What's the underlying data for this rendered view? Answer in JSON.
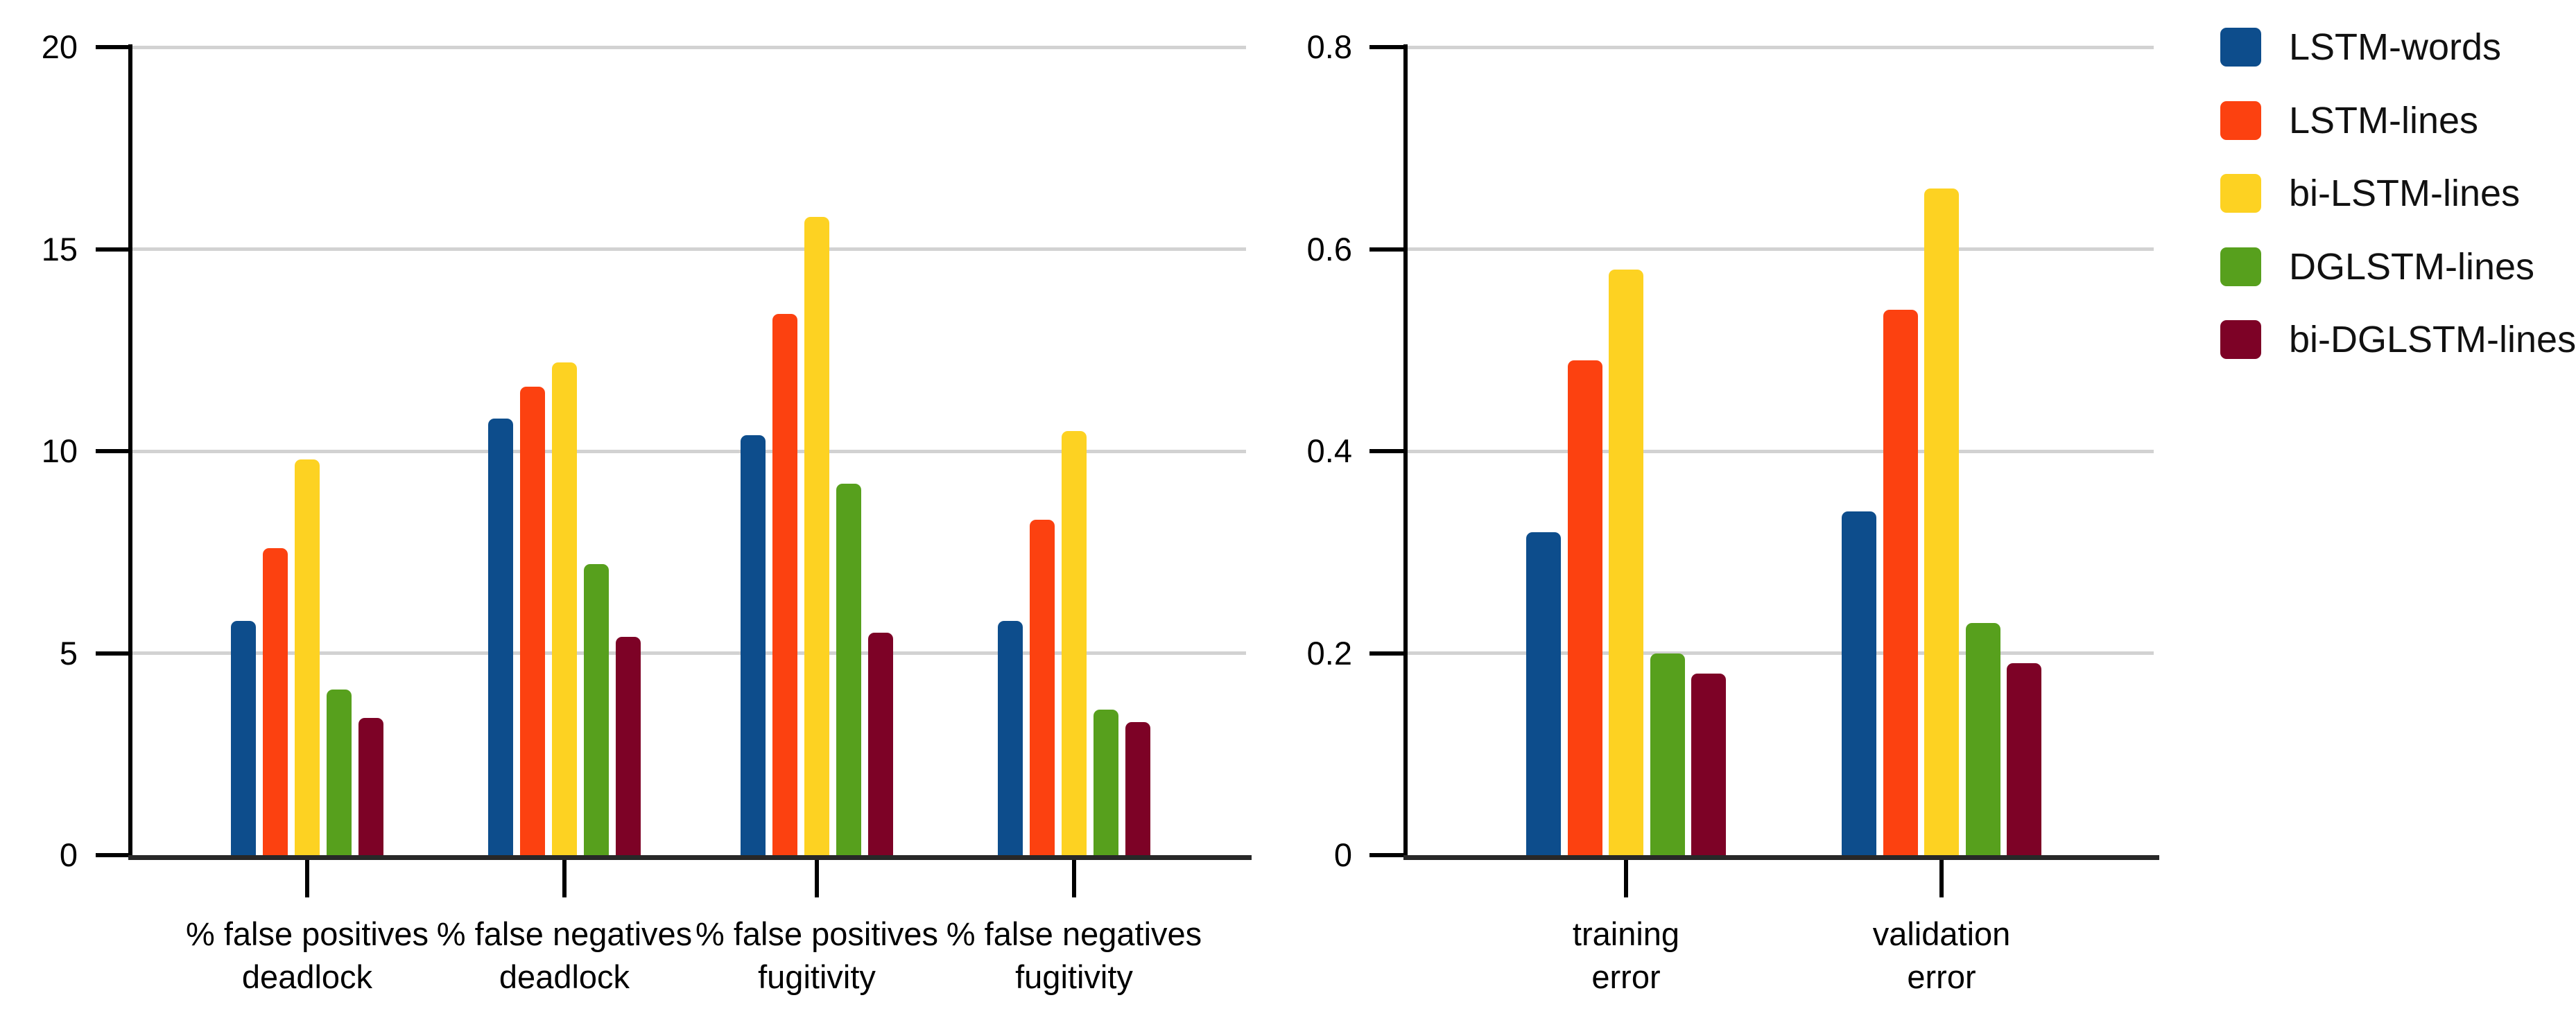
{
  "figure": {
    "background": "#ffffff",
    "gridline_color": "#d2d2d2",
    "axis_color": "#000000",
    "x_axis_color": "#282828",
    "text_color": "#000000"
  },
  "legend": {
    "position": "right",
    "items": [
      {
        "label": "LSTM-words",
        "color": "#0d4d8c"
      },
      {
        "label": "LSTM-lines",
        "color": "#fc4110"
      },
      {
        "label": "bi-LSTM-lines",
        "color": "#fdd222"
      },
      {
        "label": "DGLSTM-lines",
        "color": "#57a01d"
      },
      {
        "label": "bi-DGLSTM-lines",
        "color": "#7d0226"
      }
    ]
  },
  "chart_data": [
    {
      "type": "bar",
      "title": "",
      "xlabel": "",
      "ylabel": "",
      "grid": true,
      "ylim": [
        0,
        20
      ],
      "yticks": [
        0,
        5,
        10,
        15,
        20
      ],
      "ytick_labels": [
        "0",
        "5",
        "10",
        "15",
        "20"
      ],
      "categories": [
        {
          "line1": "% false positives",
          "line2": "deadlock"
        },
        {
          "line1": "% false negatives",
          "line2": "deadlock"
        },
        {
          "line1": "% false positives",
          "line2": "fugitivity"
        },
        {
          "line1": "% false negatives",
          "line2": "fugitivity"
        }
      ],
      "series": [
        {
          "name": "LSTM-words",
          "color": "#0d4d8c",
          "values": [
            5.8,
            10.8,
            10.4,
            5.8
          ]
        },
        {
          "name": "LSTM-lines",
          "color": "#fc4110",
          "values": [
            7.6,
            11.6,
            13.4,
            8.3
          ]
        },
        {
          "name": "bi-LSTM-lines",
          "color": "#fdd222",
          "values": [
            9.8,
            12.2,
            15.8,
            10.5
          ]
        },
        {
          "name": "DGLSTM-lines",
          "color": "#57a01d",
          "values": [
            4.1,
            7.2,
            9.2,
            3.6
          ]
        },
        {
          "name": "bi-DGLSTM-lines",
          "color": "#7d0226",
          "values": [
            3.4,
            5.4,
            5.5,
            3.3
          ]
        }
      ]
    },
    {
      "type": "bar",
      "title": "",
      "xlabel": "",
      "ylabel": "",
      "grid": true,
      "ylim": [
        0,
        0.8
      ],
      "yticks": [
        0,
        0.2,
        0.4,
        0.6,
        0.8
      ],
      "ytick_labels": [
        "0",
        "0.2",
        "0.4",
        "0.6",
        "0.8"
      ],
      "categories": [
        {
          "line1": "training",
          "line2": "error"
        },
        {
          "line1": "validation",
          "line2": "error"
        }
      ],
      "series": [
        {
          "name": "LSTM-words",
          "color": "#0d4d8c",
          "values": [
            0.32,
            0.34
          ]
        },
        {
          "name": "LSTM-lines",
          "color": "#fc4110",
          "values": [
            0.49,
            0.54
          ]
        },
        {
          "name": "bi-LSTM-lines",
          "color": "#fdd222",
          "values": [
            0.58,
            0.66
          ]
        },
        {
          "name": "DGLSTM-lines",
          "color": "#57a01d",
          "values": [
            0.2,
            0.23
          ]
        },
        {
          "name": "bi-DGLSTM-lines",
          "color": "#7d0226",
          "values": [
            0.18,
            0.19
          ]
        }
      ]
    }
  ]
}
